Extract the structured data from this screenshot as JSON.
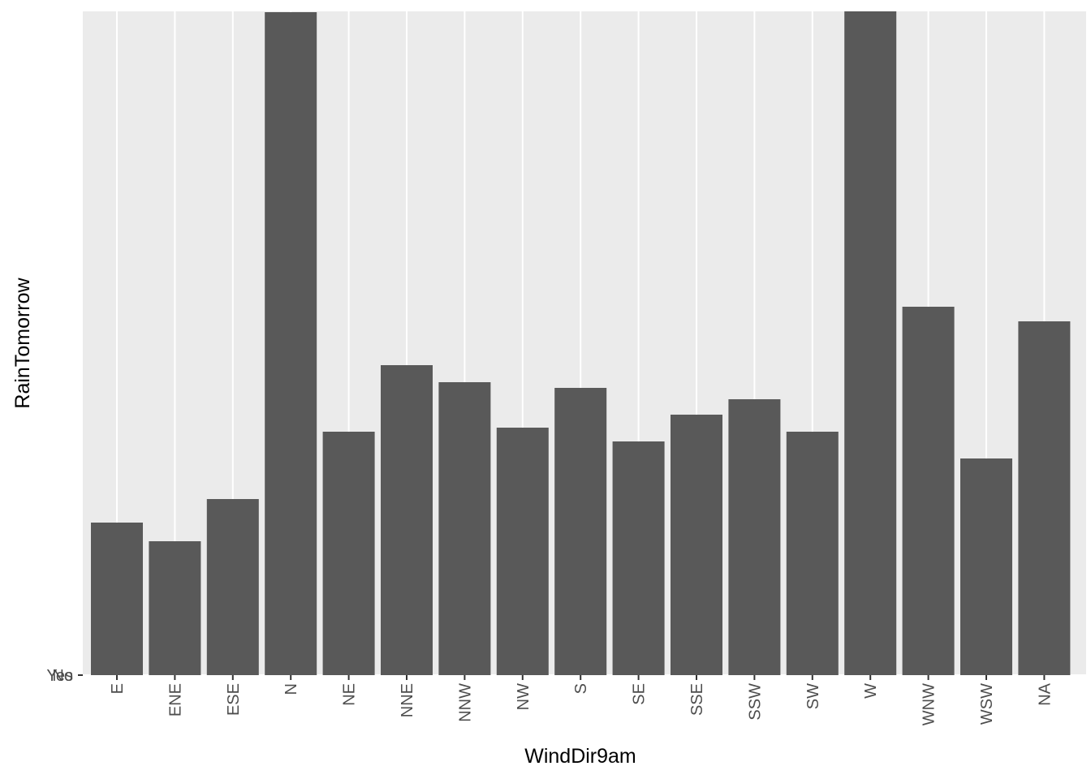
{
  "chart_data": {
    "type": "bar",
    "xlabel": "WindDir9am",
    "ylabel": "RainTomorrow",
    "categories": [
      "E",
      "ENE",
      "ESE",
      "N",
      "NE",
      "NNE",
      "NNW",
      "NW",
      "S",
      "SE",
      "SSE",
      "SSW",
      "SW",
      "W",
      "WNW",
      "WSW",
      "NA"
    ],
    "y_tick_labels": [
      "No",
      "Yes"
    ],
    "values": [
      188,
      165,
      217,
      817,
      300,
      382,
      361,
      305,
      354,
      288,
      321,
      340,
      300,
      818,
      454,
      267,
      436
    ],
    "ylim": [
      0,
      818
    ],
    "grid": true,
    "legend": "none",
    "colors": {
      "panel_background": "#ebebeb",
      "grid": "#ffffff",
      "bar": "#595959",
      "tick_text": "#4d4d4d",
      "tick_mark": "#333333"
    }
  }
}
